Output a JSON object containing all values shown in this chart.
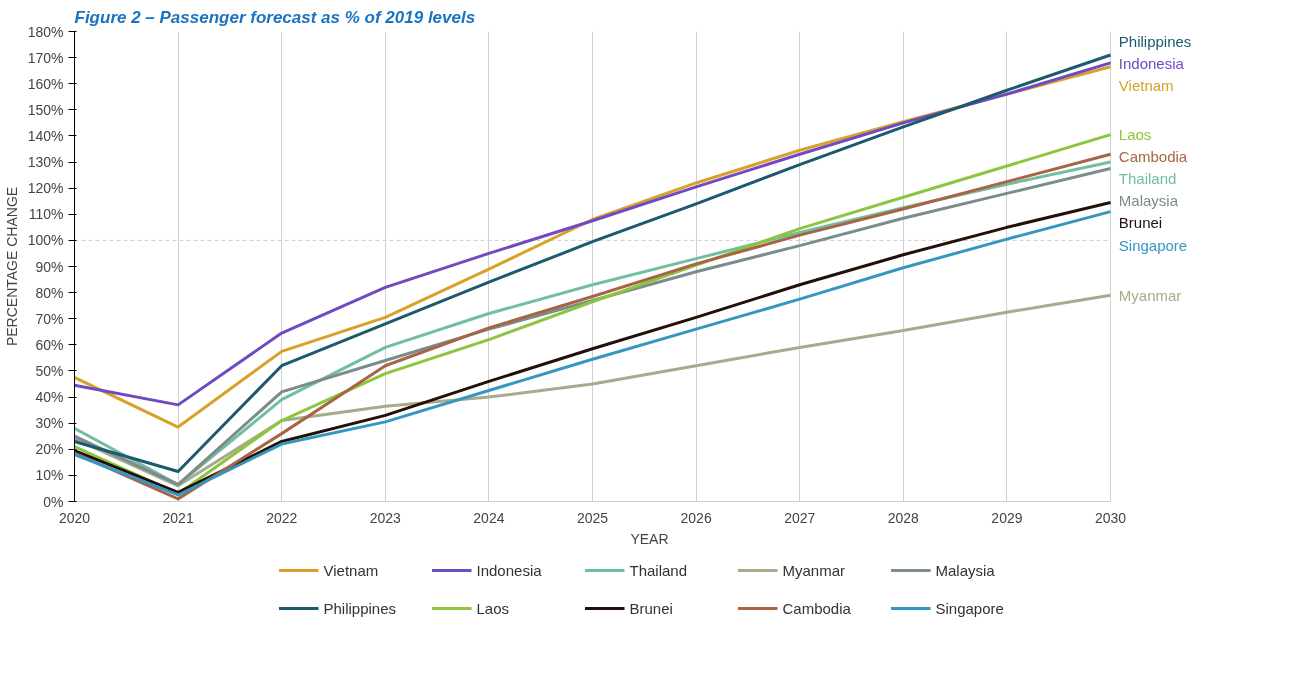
{
  "chart_data": {
    "type": "line",
    "title": "Figure 2 – Passenger forecast as % of 2019 levels",
    "xlabel": "YEAR",
    "ylabel": "PERCENTAGE CHANGE",
    "x": [
      2020,
      2021,
      2022,
      2023,
      2024,
      2025,
      2026,
      2027,
      2028,
      2029,
      2030
    ],
    "xlim": [
      2020,
      2030
    ],
    "xticks": [
      2020,
      2021,
      2022,
      2023,
      2024,
      2025,
      2026,
      2027,
      2028,
      2029,
      2030
    ],
    "ylim": [
      0,
      180
    ],
    "yticks": [
      {
        "value": 0,
        "label": "0%"
      },
      {
        "value": 10,
        "label": "10%"
      },
      {
        "value": 20,
        "label": "20%"
      },
      {
        "value": 30,
        "label": "30%"
      },
      {
        "value": 40,
        "label": "40%"
      },
      {
        "value": 50,
        "label": "50%"
      },
      {
        "value": 60,
        "label": "60%"
      },
      {
        "value": 70,
        "label": "70%"
      },
      {
        "value": 80,
        "label": "80%"
      },
      {
        "value": 90,
        "label": "90%"
      },
      {
        "value": 100,
        "label": "100%"
      },
      {
        "value": 110,
        "label": "110%"
      },
      {
        "value": 120,
        "label": "120%"
      },
      {
        "value": 130,
        "label": "130%"
      },
      {
        "value": 140,
        "label": "140%"
      },
      {
        "value": 150,
        "label": "150%"
      },
      {
        "value": 160,
        "label": "160%"
      },
      {
        "value": 170,
        "label": "170%"
      },
      {
        "value": 180,
        "label": "180%"
      }
    ],
    "grid": "x",
    "legend": "bottom",
    "marker": "none",
    "line_style": "solid",
    "ref_lines": [
      {
        "axis": "y",
        "value": 100,
        "label": null,
        "color": "#cccccc",
        "line_style": "dashed"
      }
    ],
    "series": [
      {
        "name": "Vietnam",
        "color": "#d9a02a",
        "values": [
          47.5,
          28.5,
          57.5,
          70.5,
          89,
          108,
          122,
          134.5,
          145.5,
          156,
          166.5
        ]
      },
      {
        "name": "Indonesia",
        "color": "#6f4ac2",
        "values": [
          44.5,
          37,
          64.5,
          82,
          95,
          107.5,
          120.5,
          133,
          145,
          156,
          168
        ]
      },
      {
        "name": "Thailand",
        "color": "#72bfa0",
        "values": [
          28,
          6.5,
          39,
          59,
          72,
          83,
          93,
          103,
          112.5,
          121.5,
          130
        ]
      },
      {
        "name": "Myanmar",
        "color": "#a9a98c",
        "values": [
          24,
          6,
          31,
          36.5,
          40,
          45,
          52,
          59,
          65.5,
          72.5,
          79
        ]
      },
      {
        "name": "Malaysia",
        "color": "#7a8c8c",
        "values": [
          25,
          6.5,
          42,
          54,
          66,
          77,
          88,
          98,
          108.5,
          118,
          127.5
        ]
      },
      {
        "name": "Philippines",
        "color": "#1d5a6e",
        "values": [
          23,
          11.5,
          52,
          68,
          84,
          99.5,
          114,
          129,
          143.5,
          157.5,
          171
        ]
      },
      {
        "name": "Laos",
        "color": "#8cc63f",
        "values": [
          21,
          3,
          31,
          49,
          62,
          76.5,
          90.5,
          104.5,
          116.5,
          128.5,
          140.5
        ]
      },
      {
        "name": "Brunei",
        "color": "#231008",
        "values": [
          19.5,
          3.5,
          23,
          33,
          46,
          58.5,
          70.5,
          83,
          94.5,
          105,
          114.5
        ]
      },
      {
        "name": "Cambodia",
        "color": "#a86444",
        "values": [
          18.5,
          1,
          26,
          52,
          66.5,
          78.5,
          91,
          102,
          112,
          122.5,
          133
        ]
      },
      {
        "name": "Singapore",
        "color": "#3597c0",
        "values": [
          18,
          2.5,
          22,
          30.5,
          42.5,
          54.5,
          66,
          77.5,
          89.5,
          100.5,
          111
        ]
      }
    ]
  }
}
